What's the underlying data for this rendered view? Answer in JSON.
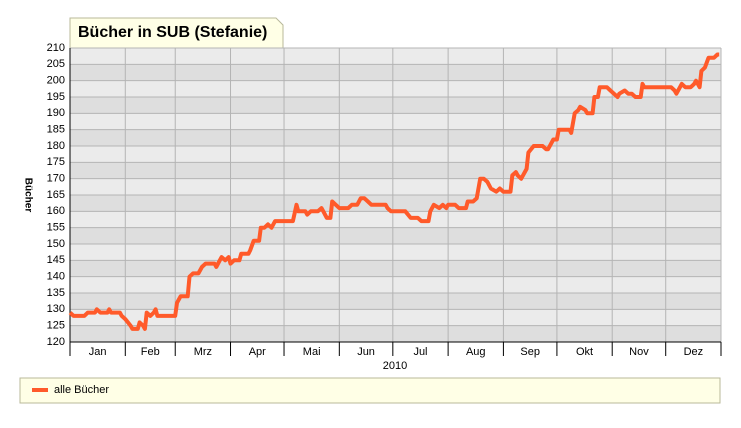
{
  "chart_data": {
    "type": "line",
    "title": "Bücher in SUB (Stefanie)",
    "y_label": "Bücher",
    "x_label": "2010",
    "xlim": [
      0,
      365
    ],
    "xticks": [
      {
        "value": 0,
        "label": "Jan"
      },
      {
        "value": 31,
        "label": "Feb"
      },
      {
        "value": 59,
        "label": "Mrz"
      },
      {
        "value": 90,
        "label": "Apr"
      },
      {
        "value": 120,
        "label": "Mai"
      },
      {
        "value": 151,
        "label": "Jun"
      },
      {
        "value": 181,
        "label": "Jul"
      },
      {
        "value": 212,
        "label": "Aug"
      },
      {
        "value": 243,
        "label": "Sep"
      },
      {
        "value": 273,
        "label": "Okt"
      },
      {
        "value": 304,
        "label": "Nov"
      },
      {
        "value": 334,
        "label": "Dez"
      },
      {
        "value": 365,
        "label": null
      }
    ],
    "ylim": [
      120,
      210
    ],
    "yticks": [
      120,
      125,
      130,
      135,
      140,
      145,
      150,
      155,
      160,
      165,
      170,
      175,
      180,
      185,
      190,
      195,
      200,
      205,
      210
    ],
    "grid": true,
    "legend": "bottom",
    "series": [
      {
        "name": "alle Bücher",
        "color": "#ff5a2a",
        "x": [
          0,
          2,
          8,
          10,
          14,
          15,
          17,
          21,
          22,
          23,
          28,
          29,
          31,
          34,
          35,
          38,
          39,
          41,
          42,
          43,
          45,
          47,
          48,
          49,
          51,
          59,
          60,
          62,
          66,
          67,
          69,
          72,
          74,
          76,
          81,
          82,
          84,
          85,
          87,
          89,
          90,
          92,
          95,
          96,
          100,
          101,
          103,
          106,
          107,
          109,
          111,
          113,
          115,
          123,
          125,
          127,
          128,
          132,
          133,
          135,
          139,
          141,
          142,
          144,
          146,
          147,
          149,
          151,
          156,
          158,
          161,
          163,
          165,
          167,
          169,
          177,
          178,
          180,
          188,
          191,
          195,
          197,
          201,
          202,
          204,
          207,
          209,
          211,
          212,
          216,
          218,
          222,
          223,
          226,
          228,
          230,
          232,
          234,
          236,
          239,
          241,
          243,
          247,
          248,
          250,
          251,
          253,
          256,
          257,
          260,
          265,
          267,
          268,
          270,
          271,
          273,
          274,
          280,
          281,
          283,
          285,
          286,
          289,
          290,
          293,
          294,
          296,
          297,
          301,
          303,
          305,
          307,
          308,
          311,
          313,
          315,
          317,
          320,
          321,
          322,
          337,
          339,
          340,
          343,
          345,
          348,
          350,
          351,
          353,
          354,
          356,
          358,
          361,
          363,
          364
        ],
        "values": [
          129,
          128,
          128,
          129,
          129,
          130,
          129,
          129,
          130,
          129,
          129,
          128,
          127,
          125,
          124,
          124,
          126,
          125,
          124,
          129,
          128,
          129,
          130,
          128,
          128,
          128,
          132,
          134,
          134,
          140,
          141,
          141,
          143,
          144,
          144,
          143,
          145,
          146,
          145,
          146,
          144,
          145,
          145,
          147,
          147,
          148,
          151,
          151,
          155,
          155,
          156,
          155,
          157,
          157,
          157,
          162,
          160,
          160,
          159,
          160,
          160,
          161,
          160,
          158,
          158,
          163,
          162,
          161,
          161,
          162,
          162,
          164,
          164,
          163,
          162,
          162,
          161,
          160,
          160,
          158,
          158,
          157,
          157,
          160,
          162,
          161,
          162,
          161,
          162,
          162,
          161,
          161,
          163,
          163,
          164,
          170,
          170,
          169,
          167,
          166,
          167,
          166,
          166,
          171,
          172,
          171,
          170,
          173,
          178,
          180,
          180,
          179,
          179,
          181,
          182,
          182,
          185,
          185,
          184,
          190,
          191,
          192,
          191,
          190,
          190,
          195,
          195,
          198,
          198,
          197,
          196,
          195,
          196,
          197,
          196,
          196,
          195,
          195,
          199,
          198,
          198,
          197,
          196,
          199,
          198,
          198,
          199,
          200,
          198,
          203,
          204,
          207,
          207,
          208,
          208
        ]
      }
    ]
  }
}
